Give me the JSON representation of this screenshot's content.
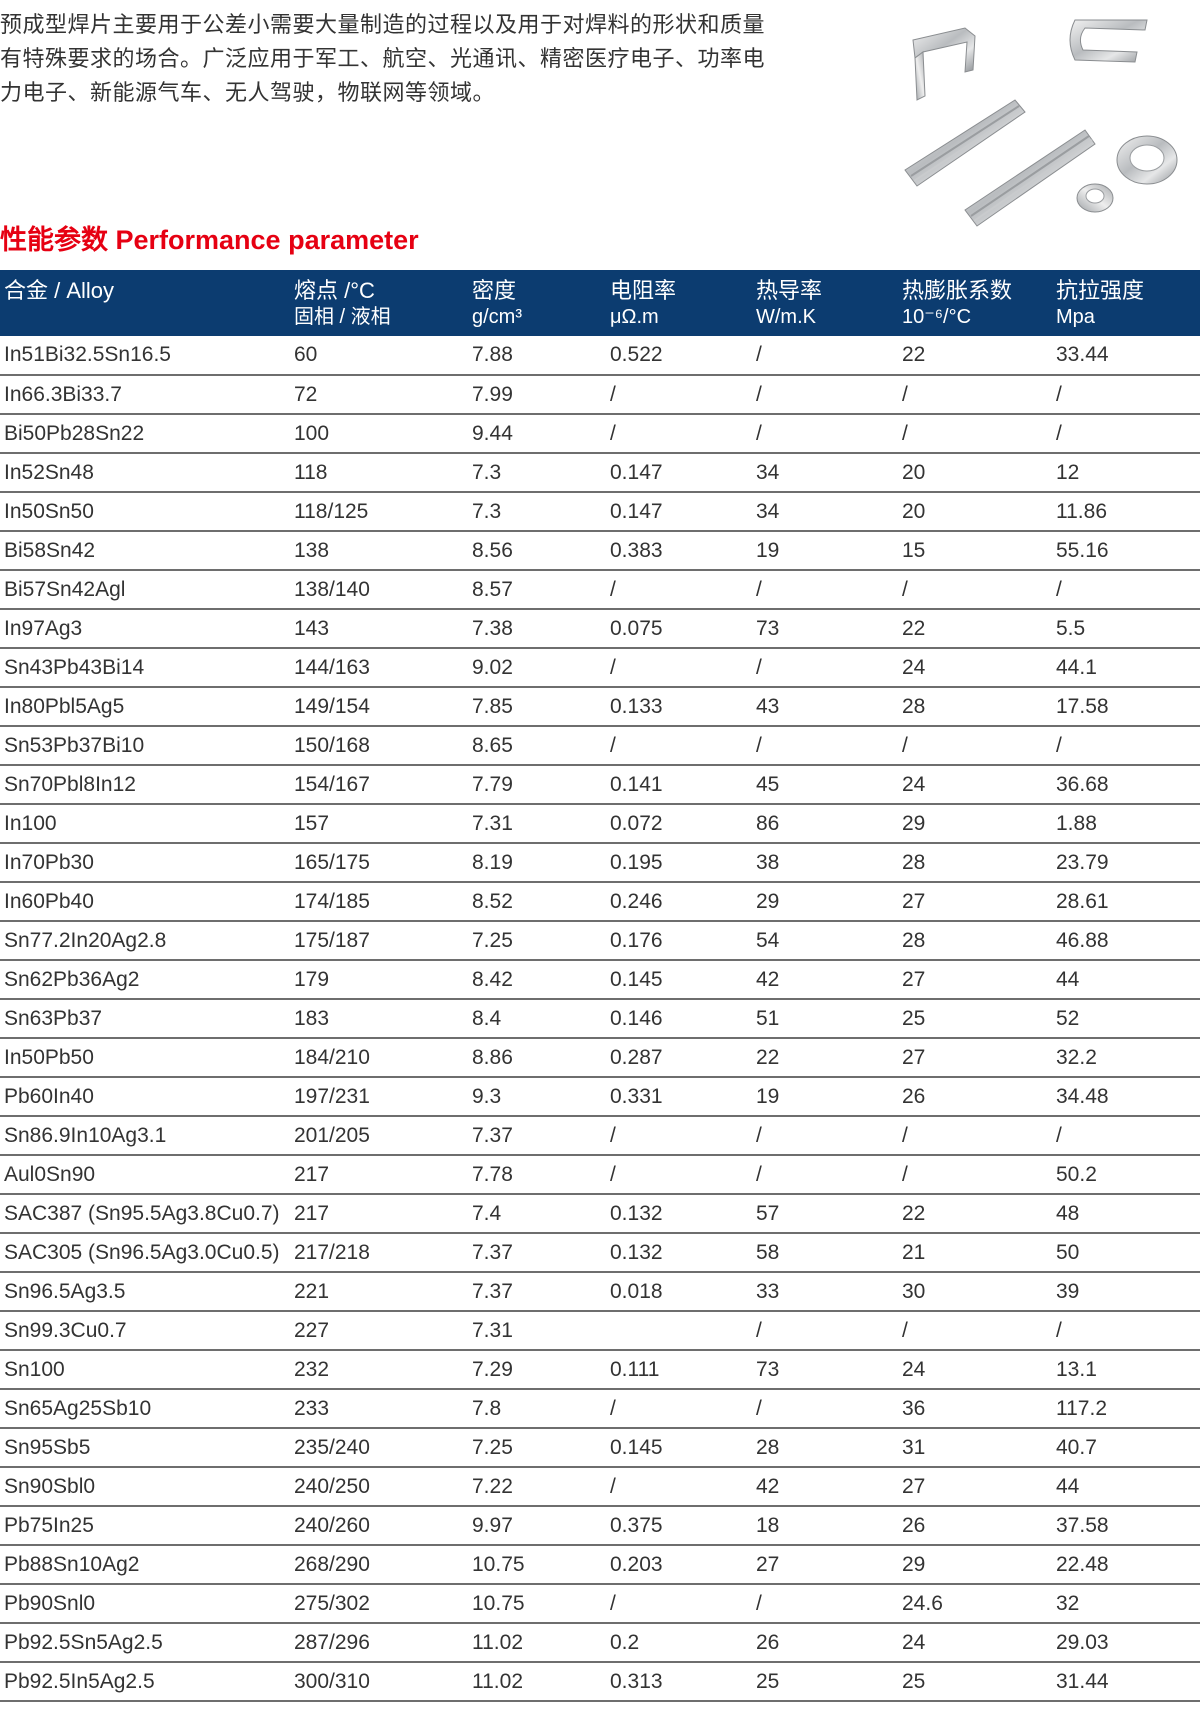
{
  "intro": {
    "lines": [
      "预成型焊片主要用于公差小需要大量制造的过程以及用于对焊料的形状和质量",
      "有特殊要求的场合。广泛应用于军工、航空、光通讯、精密医疗电子、功率电",
      "力电子、新能源气车、无人驾驶，物联网等领域。"
    ]
  },
  "section_title": "性能参数 Performance parameter",
  "table": {
    "headers": [
      {
        "line1": "合金 / Alloy",
        "line2": ""
      },
      {
        "line1": "熔点 /°C",
        "line2": "固相 / 液相"
      },
      {
        "line1": "密度",
        "line2": "g/cm³"
      },
      {
        "line1": "电阻率",
        "line2": "μΩ.m"
      },
      {
        "line1": "热导率",
        "line2": "W/m.K"
      },
      {
        "line1": "热膨胀系数",
        "line2": "10⁻⁶/°C"
      },
      {
        "line1": "抗拉强度",
        "line2": "Mpa"
      }
    ],
    "rows": [
      [
        "In51Bi32.5Sn16.5",
        "60",
        "7.88",
        "0.522",
        "/",
        "22",
        "33.44"
      ],
      [
        "In66.3Bi33.7",
        "72",
        "7.99",
        "/",
        "/",
        "/",
        "/"
      ],
      [
        "Bi50Pb28Sn22",
        "100",
        "9.44",
        "/",
        "/",
        "/",
        "/"
      ],
      [
        "In52Sn48",
        "118",
        "7.3",
        "0.147",
        "34",
        "20",
        "12"
      ],
      [
        "In50Sn50",
        "118/125",
        "7.3",
        "0.147",
        "34",
        "20",
        "11.86"
      ],
      [
        "Bi58Sn42",
        "138",
        "8.56",
        "0.383",
        "19",
        "15",
        "55.16"
      ],
      [
        "Bi57Sn42Agl",
        "138/140",
        "8.57",
        "/",
        "/",
        "/",
        "/"
      ],
      [
        "In97Ag3",
        "143",
        "7.38",
        "0.075",
        "73",
        "22",
        "5.5"
      ],
      [
        "Sn43Pb43Bi14",
        "144/163",
        "9.02",
        "/",
        "/",
        "24",
        "44.1"
      ],
      [
        "In80Pbl5Ag5",
        "149/154",
        "7.85",
        "0.133",
        "43",
        "28",
        "17.58"
      ],
      [
        "Sn53Pb37Bi10",
        "150/168",
        "8.65",
        "/",
        "/",
        "/",
        "/"
      ],
      [
        "Sn70Pbl8In12",
        "154/167",
        "7.79",
        "0.141",
        "45",
        "24",
        "36.68"
      ],
      [
        "In100",
        "157",
        "7.31",
        "0.072",
        "86",
        "29",
        "1.88"
      ],
      [
        "In70Pb30",
        "165/175",
        "8.19",
        "0.195",
        "38",
        "28",
        "23.79"
      ],
      [
        "In60Pb40",
        "174/185",
        "8.52",
        "0.246",
        "29",
        "27",
        "28.61"
      ],
      [
        "Sn77.2In20Ag2.8",
        "175/187",
        "7.25",
        "0.176",
        "54",
        "28",
        "46.88"
      ],
      [
        "Sn62Pb36Ag2",
        "179",
        "8.42",
        "0.145",
        "42",
        "27",
        "44"
      ],
      [
        "Sn63Pb37",
        "183",
        "8.4",
        "0.146",
        "51",
        "25",
        "52"
      ],
      [
        "In50Pb50",
        "184/210",
        "8.86",
        "0.287",
        "22",
        "27",
        "32.2"
      ],
      [
        "Pb60In40",
        "197/231",
        "9.3",
        "0.331",
        "19",
        "26",
        "34.48"
      ],
      [
        "Sn86.9In10Ag3.1",
        "201/205",
        "7.37",
        "/",
        "/",
        "/",
        "/"
      ],
      [
        "Aul0Sn90",
        "217",
        "7.78",
        "/",
        "/",
        "/",
        "50.2"
      ],
      [
        "SAC387 (Sn95.5Ag3.8Cu0.7)",
        "217",
        "7.4",
        "0.132",
        "57",
        "22",
        "48"
      ],
      [
        "SAC305 (Sn96.5Ag3.0Cu0.5)",
        "217/218",
        "7.37",
        "0.132",
        "58",
        "21",
        "50"
      ],
      [
        "Sn96.5Ag3.5",
        "221",
        "7.37",
        "0.018",
        "33",
        "30",
        "39"
      ],
      [
        "Sn99.3Cu0.7",
        "227",
        "7.31",
        "",
        "/",
        "/",
        "/"
      ],
      [
        "Sn100",
        "232",
        "7.29",
        "0.111",
        "73",
        "24",
        "13.1"
      ],
      [
        "Sn65Ag25Sb10",
        "233",
        "7.8",
        "/",
        "/",
        "36",
        "117.2"
      ],
      [
        "Sn95Sb5",
        "235/240",
        "7.25",
        "0.145",
        "28",
        "31",
        "40.7"
      ],
      [
        "Sn90Sbl0",
        "240/250",
        "7.22",
        "/",
        "42",
        "27",
        "44"
      ],
      [
        "Pb75In25",
        "240/260",
        "9.97",
        "0.375",
        "18",
        "26",
        "37.58"
      ],
      [
        "Pb88Sn10Ag2",
        "268/290",
        "10.75",
        "0.203",
        "27",
        "29",
        "22.48"
      ],
      [
        "Pb90Snl0",
        "275/302",
        "10.75",
        "/",
        "/",
        "24.6",
        "32"
      ],
      [
        "Pb92.5Sn5Ag2.5",
        "287/296",
        "11.02",
        "0.2",
        "26",
        "24",
        "29.03"
      ],
      [
        "Pb92.5In5Ag2.5",
        "300/310",
        "11.02",
        "0.313",
        "25",
        "25",
        "31.44"
      ]
    ]
  }
}
